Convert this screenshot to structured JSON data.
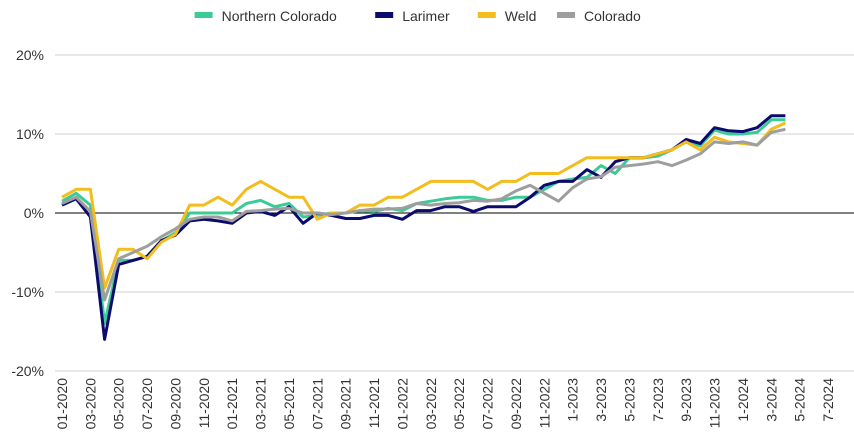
{
  "chart_data": {
    "type": "line",
    "categories": [
      "01-2020",
      null,
      "03-2020",
      null,
      "05-2020",
      null,
      "07-2020",
      null,
      "09-2020",
      null,
      "11-2020",
      null,
      "01-2021",
      null,
      "03-2021",
      null,
      "05-2021",
      null,
      "07-2021",
      null,
      "09-2021",
      null,
      "11-2021",
      null,
      "01-2022",
      null,
      "03-2022",
      null,
      "05-2022",
      null,
      "07-2022",
      null,
      "09-2022",
      null,
      "11-2022",
      null,
      "1-2023",
      null,
      "3-2023",
      null,
      "5-2023",
      null,
      "7-2023",
      null,
      "9-2023",
      null,
      "11-2023",
      null,
      "1-2024",
      null,
      "3-2024",
      null,
      "5-2024",
      null,
      "7-2024"
    ],
    "series": [
      {
        "name": "Northern Colorado",
        "color": "#3ccb96",
        "values": [
          1.5,
          2.5,
          1,
          -14,
          -6,
          -6,
          -5.5,
          -3.5,
          -2.5,
          0,
          0,
          0,
          0,
          1.2,
          1.6,
          0.8,
          1.2,
          -0.5,
          -0.3,
          0,
          0,
          0.3,
          0.2,
          0.6,
          0.3,
          1.2,
          1.5,
          1.8,
          2,
          2,
          1.6,
          1.6,
          2,
          2,
          3,
          4,
          4.3,
          4.5,
          6,
          5,
          7,
          7,
          7.2,
          8,
          9,
          8.5,
          10.5,
          10,
          10,
          10.2,
          11.8,
          11.8,
          null,
          null,
          null
        ]
      },
      {
        "name": "Larimer",
        "color": "#0b0b6e",
        "values": [
          1,
          1.8,
          -0.5,
          -16,
          -6.5,
          -6,
          -5.5,
          -3.5,
          -2.8,
          -1,
          -0.8,
          -1,
          -1.3,
          0,
          0.2,
          -0.3,
          0.8,
          -1.3,
          0,
          -0.3,
          -0.7,
          -0.7,
          -0.3,
          -0.3,
          -0.8,
          0.3,
          0.3,
          0.8,
          0.8,
          0.2,
          0.8,
          0.8,
          0.8,
          2,
          3.5,
          4,
          4,
          5.5,
          4.5,
          6.5,
          7,
          7,
          7.5,
          8,
          9.3,
          8.8,
          10.8,
          10.4,
          10.3,
          10.8,
          12.3,
          12.3,
          null,
          null,
          null
        ]
      },
      {
        "name": "Weld",
        "color": "#f2bd1d",
        "values": [
          2,
          3,
          3,
          -9.5,
          -4.6,
          -4.6,
          -5.8,
          -3.7,
          -2.7,
          1,
          1,
          2,
          1,
          3,
          4,
          3,
          2,
          2,
          -0.8,
          0,
          0,
          1,
          1,
          2,
          2,
          3,
          4,
          4,
          4,
          4,
          3,
          4,
          4,
          5,
          5,
          5,
          6,
          7,
          7,
          7,
          7,
          7,
          7.5,
          8,
          9,
          8,
          9.6,
          9,
          8.8,
          8.6,
          10.6,
          11.4,
          null,
          null,
          null
        ]
      },
      {
        "name": "Colorado",
        "color": "#9e9e9e",
        "values": [
          1.2,
          2,
          0.2,
          -11,
          -5.8,
          -5,
          -4.2,
          -3,
          -2,
          -0.8,
          -0.5,
          -0.5,
          -1,
          0.2,
          0.3,
          0.5,
          0.6,
          0,
          0,
          -0.2,
          0,
          0.3,
          0.5,
          0.5,
          0.6,
          1.2,
          1,
          1.2,
          1.3,
          1.6,
          1.5,
          1.8,
          2.8,
          3.5,
          2.5,
          1.5,
          3.2,
          4.3,
          4.6,
          5.8,
          6,
          6.2,
          6.5,
          6,
          6.7,
          7.5,
          9,
          8.8,
          9,
          8.6,
          10.2,
          10.6,
          null,
          null,
          null
        ]
      }
    ],
    "ylim": [
      -20,
      20
    ],
    "yticks": [
      {
        "value": -20,
        "label": "-20%"
      },
      {
        "value": -10,
        "label": "-10%"
      },
      {
        "value": 0,
        "label": "0%"
      },
      {
        "value": 10,
        "label": "10%"
      },
      {
        "value": 20,
        "label": "20%"
      }
    ],
    "grid": true,
    "legend": "top"
  }
}
